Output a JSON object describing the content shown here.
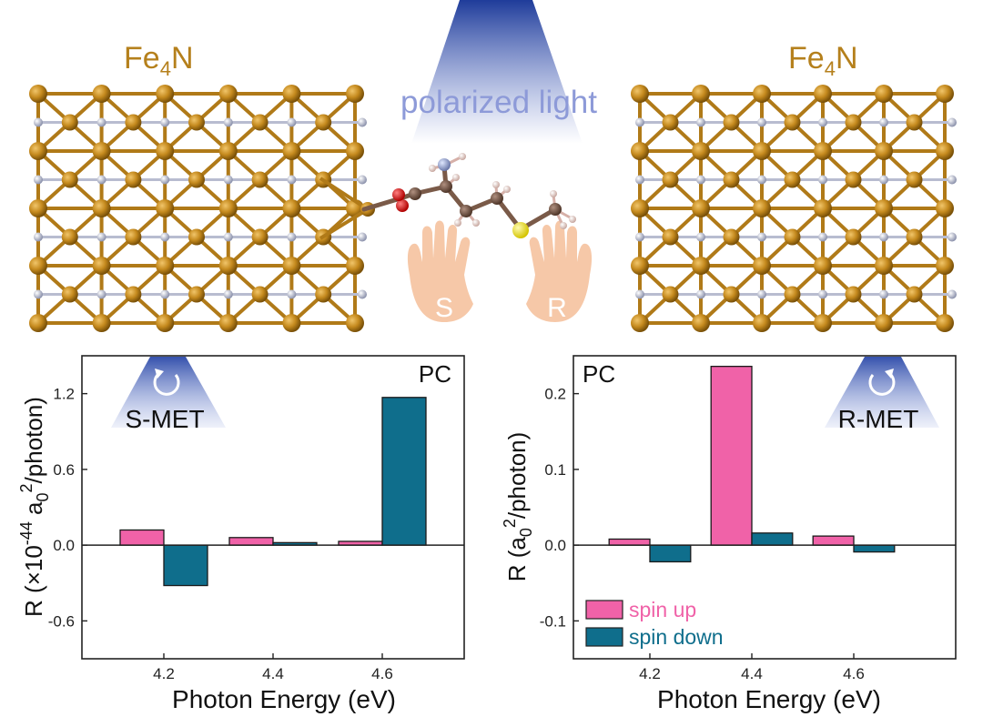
{
  "scene": {
    "left_material": {
      "base": "Fe",
      "sub": "4",
      "tail": "N"
    },
    "right_material": {
      "base": "Fe",
      "sub": "4",
      "tail": "N"
    },
    "light_label": "polarized light",
    "hand_left_label": "S",
    "hand_right_label": "R",
    "colors": {
      "fe": "#b5801c",
      "n": "#aab0c8",
      "light": "#2c46a0",
      "hand": "#f6c8a8",
      "oxygen": "#e02020",
      "sulfur": "#f0e020",
      "carbon": "#7a5a48"
    }
  },
  "legend": {
    "items": [
      {
        "label": "spin up",
        "color": "#f062a8"
      },
      {
        "label": "spin down",
        "color": "#0f6e8c"
      }
    ]
  },
  "chart_data": [
    {
      "type": "bar",
      "panel_tag": "PC",
      "enantiomer_label": "S-MET",
      "xlabel": "Photon Energy (eV)",
      "ylabel": {
        "pre": "R (×10",
        "sup1": "-44",
        "mid": " a",
        "sub": "0",
        "sup2": "2",
        "post": "/photon)"
      },
      "categories": [
        "4.2",
        "4.4",
        "4.6"
      ],
      "xlim": [
        4.05,
        4.75
      ],
      "ylim": [
        -0.9,
        1.5
      ],
      "yticks": [
        -0.6,
        0.0,
        0.6,
        1.2
      ],
      "ytick_labels": [
        "-0.6",
        "0.0",
        "0.6",
        "1.2"
      ],
      "series": [
        {
          "name": "spin up",
          "color": "#f062a8",
          "x": [
            4.16,
            4.36,
            4.56
          ],
          "values": [
            0.12,
            0.06,
            0.03
          ]
        },
        {
          "name": "spin down",
          "color": "#0f6e8c",
          "x": [
            4.24,
            4.44,
            4.64
          ],
          "values": [
            -0.32,
            0.02,
            1.17
          ]
        }
      ]
    },
    {
      "type": "bar",
      "panel_tag": "PC",
      "enantiomer_label": "R-MET",
      "xlabel": "Photon Energy (eV)",
      "ylabel": {
        "pre": "R (a",
        "sub": "0",
        "sup2": "2",
        "post": "/photon)"
      },
      "categories": [
        "4.2",
        "4.4",
        "4.6"
      ],
      "xlim": [
        4.05,
        4.8
      ],
      "ylim": [
        -0.15,
        0.25
      ],
      "yticks": [
        -0.1,
        0.0,
        0.1,
        0.2
      ],
      "ytick_labels": [
        "-0.1",
        "0.0",
        "0.1",
        "0.2"
      ],
      "series": [
        {
          "name": "spin up",
          "color": "#f062a8",
          "x": [
            4.16,
            4.36,
            4.56
          ],
          "values": [
            0.008,
            0.236,
            0.012
          ]
        },
        {
          "name": "spin down",
          "color": "#0f6e8c",
          "x": [
            4.24,
            4.44,
            4.64
          ],
          "values": [
            -0.022,
            0.016,
            -0.009
          ]
        }
      ]
    }
  ]
}
